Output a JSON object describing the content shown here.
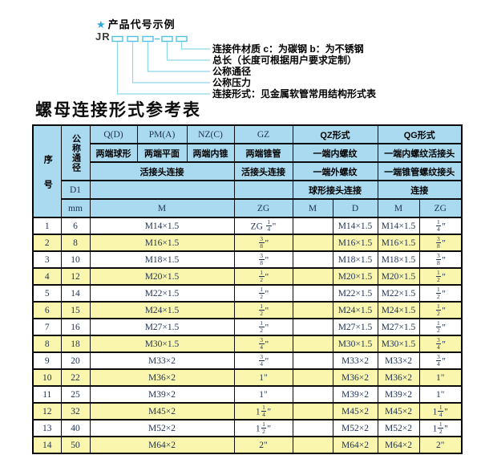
{
  "diagram": {
    "star": "★",
    "heading": "产品代号示例",
    "code": "JR",
    "labels": [
      "连接件材质  c：为碳钢  b：为不锈钢",
      "总长（长度可根据用户要求定制）",
      "公称通径",
      "公称压力",
      "连接形式：见金属软管常用结构形式表"
    ]
  },
  "title": "螺母连接形式参考表",
  "table": {
    "header": {
      "no": "序号",
      "dn": "公称通径",
      "d1": "D1",
      "mm": "mm",
      "q": "Q(D)",
      "q_sub": "两端球形",
      "pm": "PM(A)",
      "pm_sub": "两端平面",
      "nz": "NZ(C)",
      "nz_sub": "两端内锥",
      "gz": "GZ",
      "gz_sub": "两端锥管",
      "qz": "QZ形式",
      "qz_sub1": "一端内螺纹",
      "qz_sub2": "一端外螺纹",
      "qz_sub3": "球形接头连接",
      "qg": "QG形式",
      "qg_sub1": "一端内螺纹活接头",
      "qg_sub2": "一端锥管螺纹接头",
      "qg_sub3": "连接",
      "union1": "活接头连接",
      "union2": "活接头连接",
      "m": "M",
      "zg": "ZG",
      "qz_m": "M",
      "qz_d": "D",
      "qg_m": "M",
      "qg_zg": "ZG"
    },
    "rows": [
      {
        "no": "1",
        "dn": "6",
        "m": "M14×1.5",
        "gz_zg": "ZG {1/4}\"",
        "qz_m": "",
        "qz_d": "M14×1.5",
        "qg_m": "M14×1.5",
        "qg_zg": "{1/4}\""
      },
      {
        "no": "2",
        "dn": "8",
        "m": "M16×1.5",
        "gz_zg": "{3/8}\"",
        "qz_m": "",
        "qz_d": "M16×1.5",
        "qg_m": "M16×1.5",
        "qg_zg": "{3/8}\""
      },
      {
        "no": "3",
        "dn": "10",
        "m": "M18×1.5",
        "gz_zg": "{3/8}\"",
        "qz_m": "",
        "qz_d": "M18×1.5",
        "qg_m": "M18×1.5",
        "qg_zg": "{3/8}\""
      },
      {
        "no": "4",
        "dn": "12",
        "m": "M20×1.5",
        "gz_zg": "{1/2}\"",
        "qz_m": "",
        "qz_d": "M20×1.5",
        "qg_m": "M20×1.5",
        "qg_zg": "{1/2}\""
      },
      {
        "no": "5",
        "dn": "14",
        "m": "M22×1.5",
        "gz_zg": "{1/2}\"",
        "qz_m": "",
        "qz_d": "M22×1.5",
        "qg_m": "M22×1.5",
        "qg_zg": "{1/2}\""
      },
      {
        "no": "6",
        "dn": "15",
        "m": "M24×1.5",
        "gz_zg": "{1/2}\"",
        "qz_m": "",
        "qz_d": "M24×1.5",
        "qg_m": "M24×1.5",
        "qg_zg": "{1/2}\""
      },
      {
        "no": "7",
        "dn": "16",
        "m": "M27×1.5",
        "gz_zg": "{1/2}\"",
        "qz_m": "",
        "qz_d": "M27×1.5",
        "qg_m": "M27×1.5",
        "qg_zg": "{1/2}\""
      },
      {
        "no": "8",
        "dn": "18",
        "m": "M30×1.5",
        "gz_zg": "{3/4}\"",
        "qz_m": "",
        "qz_d": "M30×1.5",
        "qg_m": "M30×1.5",
        "qg_zg": "{3/4}\""
      },
      {
        "no": "9",
        "dn": "20",
        "m": "M33×2",
        "gz_zg": "{3/4}\"",
        "qz_m": "",
        "qz_d": "M33×2",
        "qg_m": "M33×2",
        "qg_zg": "{3/4}\""
      },
      {
        "no": "10",
        "dn": "22",
        "m": "M36×2",
        "gz_zg": "1\"",
        "qz_m": "",
        "qz_d": "M36×2",
        "qg_m": "M36×2",
        "qg_zg": "1\""
      },
      {
        "no": "11",
        "dn": "25",
        "m": "M39×2",
        "gz_zg": "1\"",
        "qz_m": "",
        "qz_d": "M39×2",
        "qg_m": "M39×2",
        "qg_zg": "1\""
      },
      {
        "no": "12",
        "dn": "32",
        "m": "M45×2",
        "gz_zg": "1{1/4}\"",
        "qz_m": "",
        "qz_d": "M45×2",
        "qg_m": "M45×2",
        "qg_zg": "1{1/4}\""
      },
      {
        "no": "13",
        "dn": "40",
        "m": "M52×2",
        "gz_zg": "1{1/2}\"",
        "qz_m": "",
        "qz_d": "M52×2",
        "qg_m": "M52×2",
        "qg_zg": "1{1/2}\""
      },
      {
        "no": "14",
        "dn": "50",
        "m": "M64×2",
        "gz_zg": "2\"",
        "qz_m": "",
        "qz_d": "M64×2",
        "qg_m": "M64×2",
        "qg_zg": "2\""
      }
    ]
  },
  "colors": {
    "header_blue": "#a9daef",
    "row_yellow": "#fbf6ae",
    "row_white": "#ffffff",
    "diagram_cyan": "#4fc1e4",
    "connector_cyan": "#8fd5ea",
    "star_blue": "#29a8df",
    "table_text": "#1d3154",
    "border_black": "#0c0c0c"
  }
}
